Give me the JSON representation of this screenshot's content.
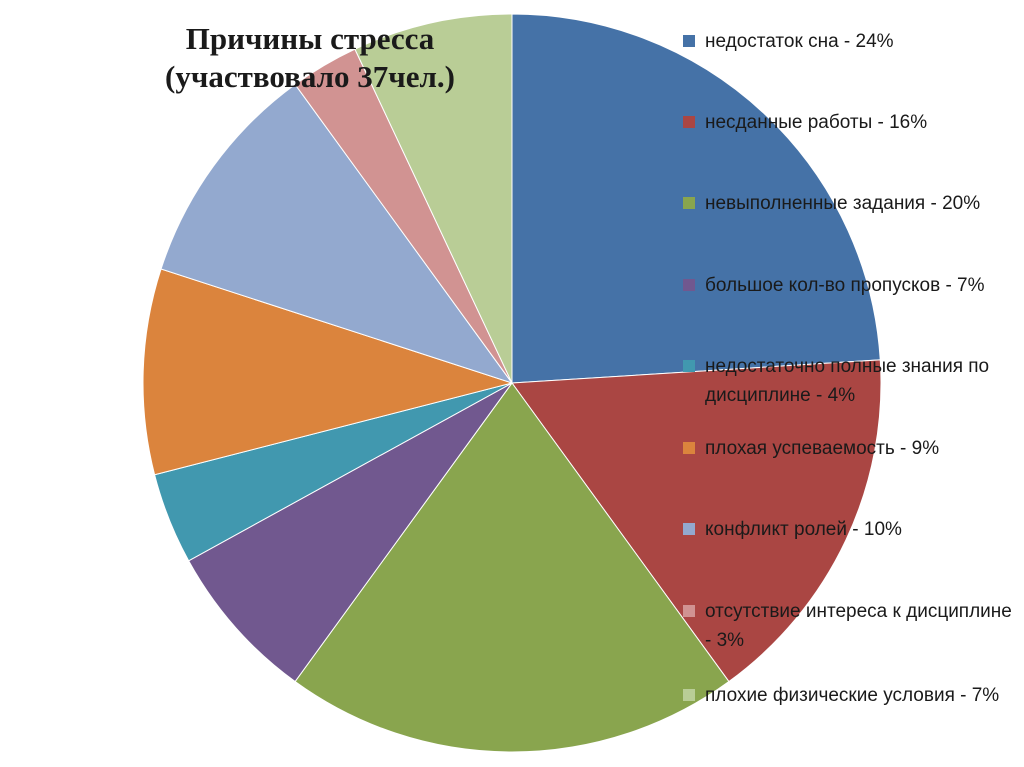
{
  "chart_data": {
    "type": "pie",
    "title_lines": [
      "Причины стресса",
      "(участвовало 37чел.)"
    ],
    "slices": [
      {
        "label": "недостаток сна - 24%",
        "value": 24,
        "color": "#4572A7"
      },
      {
        "label": "несданные работы - 16%",
        "value": 16,
        "color": "#AA4643"
      },
      {
        "label": "невыполненные задания - 20%",
        "value": 20,
        "color": "#89A54E"
      },
      {
        "label": "большое кол-во пропусков - 7%",
        "value": 7,
        "color": "#71588F"
      },
      {
        "label": "недостаточно полные знания по дисциплине - 4%",
        "value": 4,
        "color": "#4198AF"
      },
      {
        "label": "плохая успеваемость - 9%",
        "value": 9,
        "color": "#DB843D"
      },
      {
        "label": "конфликт ролей - 10%",
        "value": 10,
        "color": "#93A9CF"
      },
      {
        "label": "отсутствие интереса к дисциплине - 3%",
        "value": 3,
        "color": "#D19392"
      },
      {
        "label": "плохие физические условия - 7%",
        "value": 7,
        "color": "#B9CD96"
      }
    ],
    "start_angle_deg": 0,
    "direction": "clockwise",
    "legend_position": "right"
  }
}
